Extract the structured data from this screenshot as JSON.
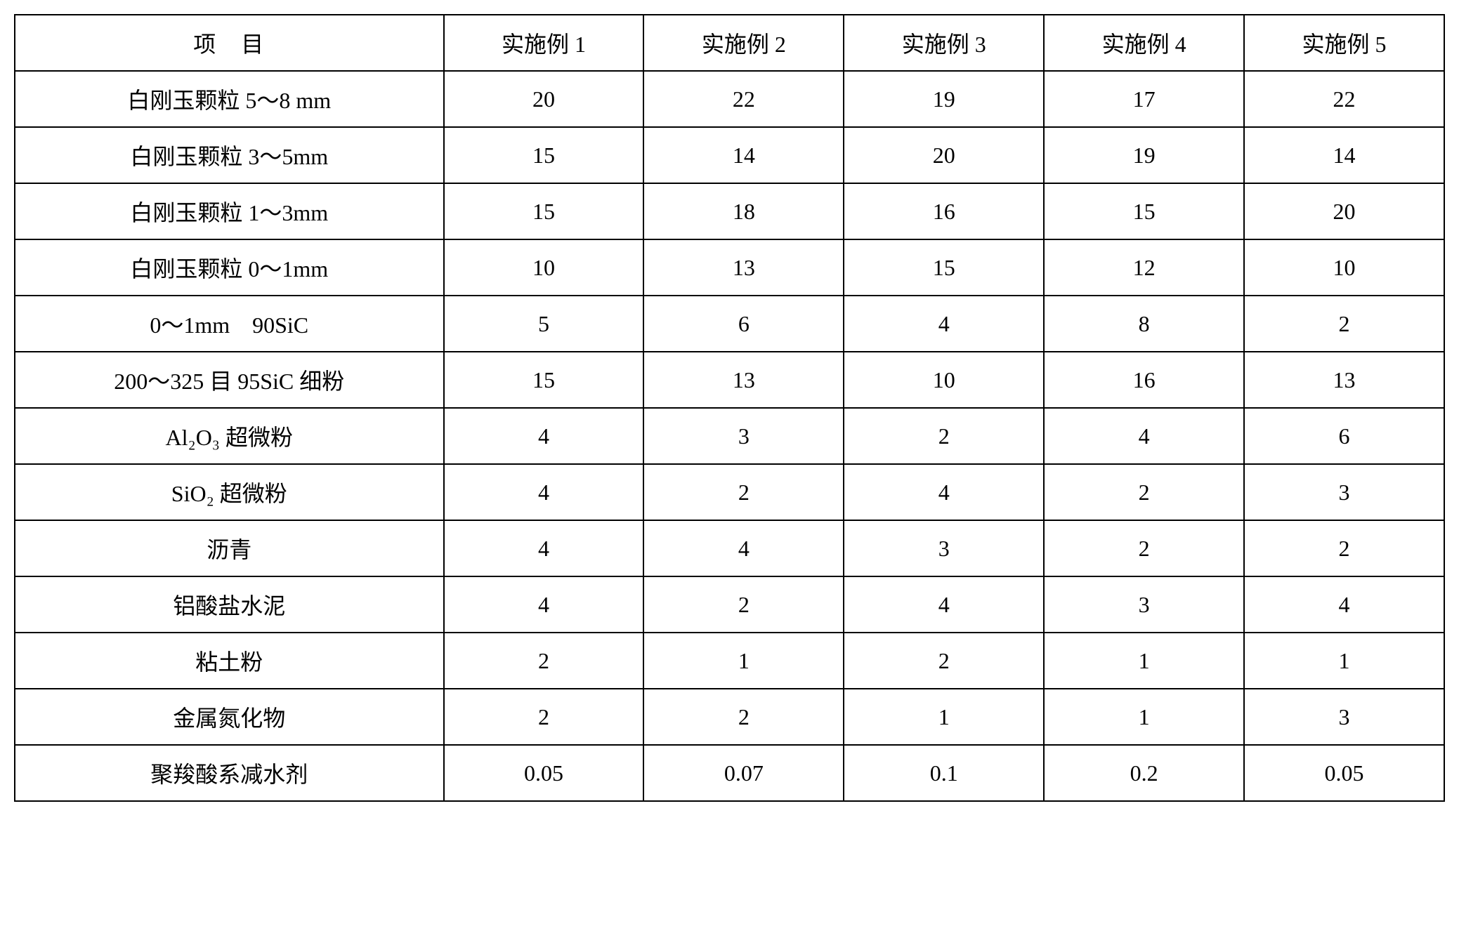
{
  "table": {
    "columns": [
      "项　目",
      "实施例 1",
      "实施例 2",
      "实施例 3",
      "实施例 4",
      "实施例 5"
    ],
    "rows": [
      {
        "label": "白刚玉颗粒 5～8 mm",
        "values": [
          "20",
          "22",
          "19",
          "17",
          "22"
        ]
      },
      {
        "label": "白刚玉颗粒 3～5mm",
        "values": [
          "15",
          "14",
          "20",
          "19",
          "14"
        ]
      },
      {
        "label": "白刚玉颗粒 1～3mm",
        "values": [
          "15",
          "18",
          "16",
          "15",
          "20"
        ]
      },
      {
        "label": "白刚玉颗粒 0～1mm",
        "values": [
          "10",
          "13",
          "15",
          "12",
          "10"
        ]
      },
      {
        "label": "0～1mm　90SiC",
        "values": [
          "5",
          "6",
          "4",
          "8",
          "2"
        ]
      },
      {
        "label": "200～325 目 95SiC 细粉",
        "values": [
          "15",
          "13",
          "10",
          "16",
          "13"
        ]
      },
      {
        "label": "Al₂O₃ 超微粉",
        "values": [
          "4",
          "3",
          "2",
          "4",
          "6"
        ]
      },
      {
        "label": "SiO₂ 超微粉",
        "values": [
          "4",
          "2",
          "4",
          "2",
          "3"
        ]
      },
      {
        "label": "沥青",
        "values": [
          "4",
          "4",
          "3",
          "2",
          "2"
        ]
      },
      {
        "label": "铝酸盐水泥",
        "values": [
          "4",
          "2",
          "4",
          "3",
          "4"
        ]
      },
      {
        "label": "粘土粉",
        "values": [
          "2",
          "1",
          "2",
          "1",
          "1"
        ]
      },
      {
        "label": "金属氮化物",
        "values": [
          "2",
          "2",
          "1",
          "1",
          "3"
        ]
      },
      {
        "label": "聚羧酸系减水剂",
        "values": [
          "0.05",
          "0.07",
          "0.1",
          "0.2",
          "0.05"
        ]
      }
    ],
    "styling": {
      "border_color": "#000000",
      "border_width": 2,
      "background_color": "#ffffff",
      "text_color": "#000000",
      "font_size": 32,
      "font_family": "SimSun",
      "cell_padding": 16,
      "first_column_width_pct": 30,
      "data_column_width_pct": 14,
      "text_align_data": "center",
      "text_align_label": "center"
    }
  }
}
